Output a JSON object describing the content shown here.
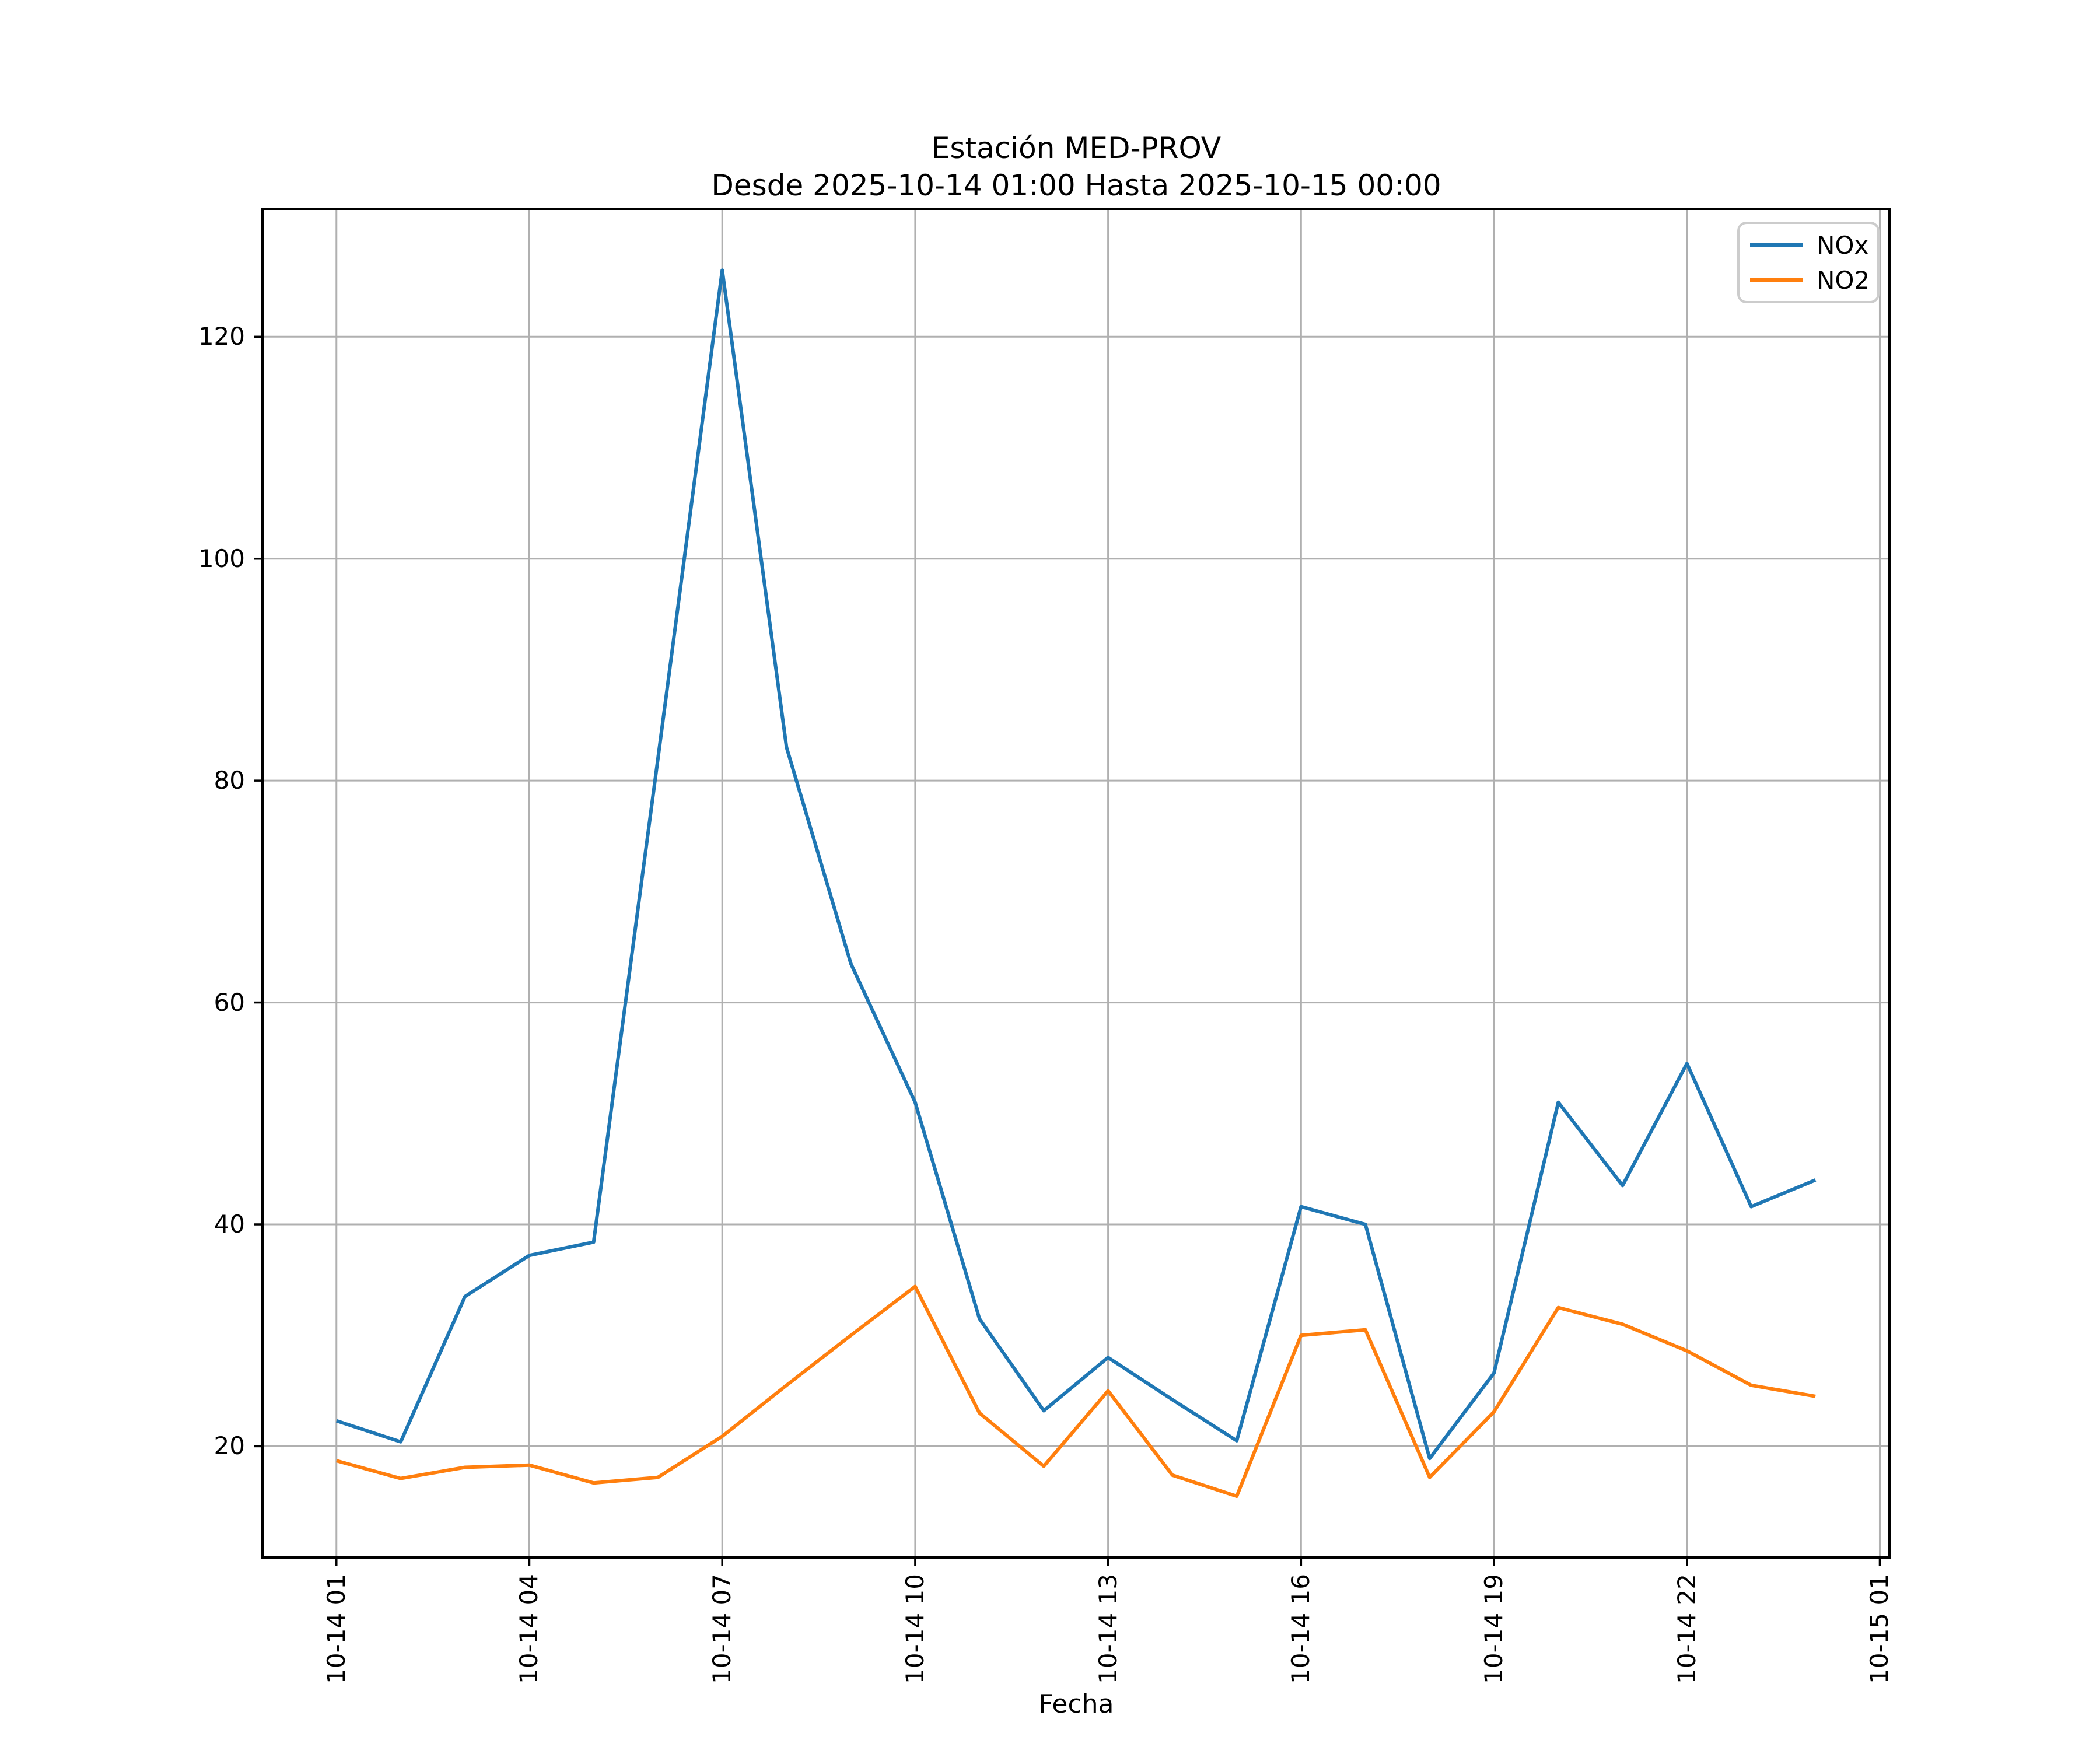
{
  "chart_data": {
    "type": "line",
    "title": "Estación MED-PROV",
    "subtitle": "Desde 2025-10-14 01:00 Hasta 2025-10-15 00:00",
    "xlabel": "Fecha",
    "ylabel": "",
    "x_date": "2025-10-14",
    "x_hours": [
      1,
      2,
      3,
      4,
      5,
      6,
      7,
      8,
      9,
      10,
      11,
      12,
      13,
      14,
      15,
      16,
      17,
      18,
      19,
      20,
      21,
      22,
      23,
      24
    ],
    "series": [
      {
        "name": "NOx",
        "color": "#1f77b4",
        "values": [
          22.3,
          20.4,
          33.5,
          37.2,
          38.4,
          82,
          126,
          83,
          63.5,
          51,
          31.5,
          23.2,
          28,
          24.2,
          20.5,
          41.6,
          40,
          18.9,
          26.6,
          51,
          43.5,
          54.5,
          41.6,
          44
        ]
      },
      {
        "name": "NO2",
        "color": "#ff7f0e",
        "values": [
          18.7,
          17.1,
          18.1,
          18.3,
          16.7,
          17.2,
          20.9,
          25.5,
          30,
          34.4,
          23,
          18.2,
          25,
          17.4,
          15.5,
          30,
          30.5,
          17.2,
          23.1,
          32.5,
          31,
          28.6,
          25.5,
          24.5
        ]
      }
    ],
    "x_tick_positions": [
      1,
      4,
      7,
      10,
      13,
      16,
      19,
      22,
      25
    ],
    "x_tick_labels": [
      "10-14 01",
      "10-14 04",
      "10-14 07",
      "10-14 10",
      "10-14 13",
      "10-14 16",
      "10-14 19",
      "10-14 22",
      "10-15 01"
    ],
    "y_ticks": [
      20,
      40,
      60,
      80,
      100,
      120
    ],
    "xlim": [
      -0.15,
      25.15
    ],
    "ylim": [
      9.98,
      131.53
    ],
    "grid": true,
    "legend_position": "upper right",
    "colors": {
      "background": "#ffffff",
      "grid": "#b0b0b0",
      "axes": "#000000",
      "text": "#000000",
      "legend_border": "#cccccc"
    }
  }
}
